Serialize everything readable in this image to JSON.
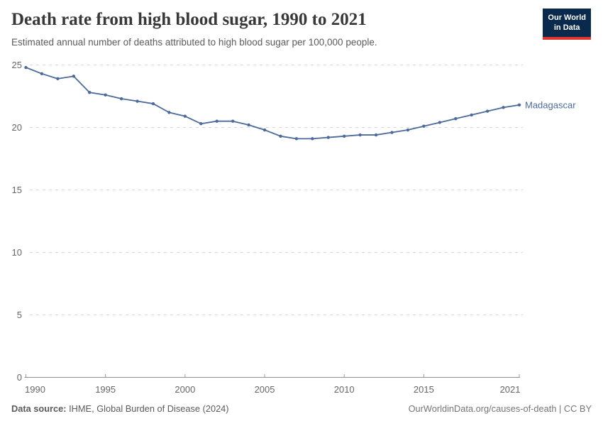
{
  "header": {
    "title": "Death rate from high blood sugar, 1990 to 2021",
    "subtitle": "Estimated annual number of deaths attributed to high blood sugar per 100,000 people.",
    "logo": {
      "line1": "Our World",
      "line2": "in Data"
    }
  },
  "chart_data": {
    "type": "line",
    "title": "Death rate from high blood sugar, 1990 to 2021",
    "xlabel": "",
    "ylabel": "",
    "x": [
      1990,
      1991,
      1992,
      1993,
      1994,
      1995,
      1996,
      1997,
      1998,
      1999,
      2000,
      2001,
      2002,
      2003,
      2004,
      2005,
      2006,
      2007,
      2008,
      2009,
      2010,
      2011,
      2012,
      2013,
      2014,
      2015,
      2016,
      2017,
      2018,
      2019,
      2020,
      2021
    ],
    "series": [
      {
        "name": "Madagascar",
        "color": "#4C6A9C",
        "values": [
          24.8,
          24.3,
          23.9,
          24.1,
          22.8,
          22.6,
          22.3,
          22.1,
          21.9,
          21.2,
          20.9,
          20.3,
          20.5,
          20.5,
          20.2,
          19.8,
          19.3,
          19.1,
          19.1,
          19.2,
          19.3,
          19.4,
          19.4,
          19.6,
          19.8,
          20.1,
          20.4,
          20.7,
          21.0,
          21.3,
          21.6,
          21.8
        ]
      }
    ],
    "ylim": [
      0,
      25
    ],
    "yticks": [
      0,
      5,
      10,
      15,
      20,
      25
    ],
    "xticks": [
      1990,
      1995,
      2000,
      2005,
      2010,
      2015,
      2021
    ],
    "grid": "horizontal dashed",
    "legend_position": "end-of-line label",
    "markers": true
  },
  "footer": {
    "source_label": "Data source:",
    "source_value": " IHME, Global Burden of Disease (2024)",
    "attribution": "OurWorldinData.org/causes-of-death | CC BY"
  },
  "colors": {
    "line": "#4C6A9C",
    "grid": "#d9d9d9",
    "axis": "#8f8f8f",
    "tick": "#9a9a9a",
    "tick_text": "#666666",
    "logo_bg": "#0a2a4d",
    "logo_red": "#e0352b"
  }
}
